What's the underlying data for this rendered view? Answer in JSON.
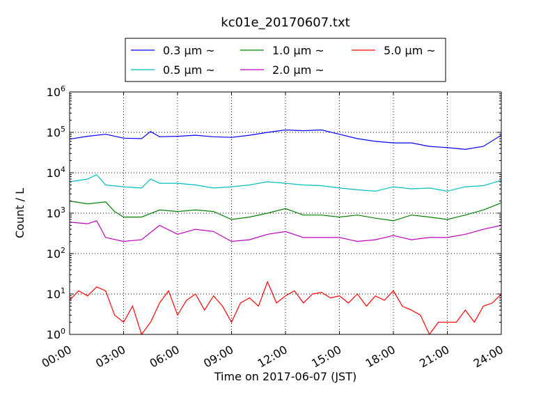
{
  "chart_data": {
    "type": "line",
    "title": "kc01e_20170607.txt",
    "xlabel": "Time on 2017-06-07 (JST)",
    "ylabel": "Count / L",
    "yscale": "log",
    "ylim": [
      1,
      1000000
    ],
    "xlim": [
      0,
      24
    ],
    "grid": true,
    "legend_position": "top-center",
    "x_tick_labels": [
      "00:00",
      "03:00",
      "06:00",
      "09:00",
      "12:00",
      "15:00",
      "18:00",
      "21:00",
      "24:00"
    ],
    "y_tick_exponents": [
      "0",
      "1",
      "2",
      "3",
      "4",
      "5",
      "6"
    ],
    "y_tick_base": "10",
    "series": [
      {
        "name": "0.3 μm ~",
        "color": "#0000ff",
        "x": [
          0,
          1,
          2,
          3,
          4,
          4.5,
          5,
          6,
          7,
          8,
          9,
          10,
          11,
          12,
          13,
          14,
          15,
          16,
          17,
          18,
          19,
          20,
          21,
          22,
          23,
          24
        ],
        "values": [
          68000,
          80000,
          90000,
          72000,
          70000,
          105000,
          78000,
          80000,
          85000,
          78000,
          75000,
          85000,
          100000,
          115000,
          110000,
          115000,
          90000,
          70000,
          60000,
          55000,
          55000,
          45000,
          42000,
          38000,
          45000,
          85000
        ]
      },
      {
        "name": "0.5 μm ~",
        "color": "#00bfbf",
        "x": [
          0,
          1,
          1.5,
          2,
          3,
          4,
          4.5,
          5,
          6,
          7,
          8,
          9,
          10,
          11,
          12,
          13,
          14,
          15,
          16,
          17,
          18,
          19,
          20,
          21,
          22,
          23,
          24
        ],
        "values": [
          6000,
          7000,
          9000,
          5000,
          4500,
          4200,
          7000,
          5500,
          5500,
          5000,
          4200,
          4500,
          5000,
          6000,
          5500,
          5000,
          4800,
          4200,
          3800,
          3500,
          4500,
          4000,
          4200,
          3500,
          4500,
          4800,
          6500
        ]
      },
      {
        "name": "1.0 μm ~",
        "color": "#008000",
        "x": [
          0,
          1,
          2,
          2.5,
          3,
          4,
          5,
          6,
          7,
          8,
          9,
          10,
          11,
          12,
          13,
          14,
          15,
          16,
          17,
          18,
          19,
          20,
          21,
          22,
          23,
          24
        ],
        "values": [
          2000,
          1700,
          1900,
          1100,
          800,
          800,
          1200,
          1100,
          1200,
          1100,
          700,
          800,
          1000,
          1300,
          900,
          900,
          800,
          900,
          750,
          650,
          900,
          800,
          700,
          900,
          1200,
          1800
        ]
      },
      {
        "name": "2.0 μm ~",
        "color": "#bf00bf",
        "x": [
          0,
          1,
          1.5,
          2,
          3,
          4,
          5,
          6,
          7,
          8,
          9,
          10,
          11,
          12,
          13,
          14,
          15,
          16,
          17,
          18,
          19,
          20,
          21,
          22,
          23,
          24
        ],
        "values": [
          600,
          550,
          650,
          250,
          200,
          220,
          500,
          300,
          400,
          350,
          200,
          220,
          300,
          350,
          250,
          250,
          250,
          200,
          220,
          280,
          220,
          250,
          250,
          300,
          400,
          500
        ]
      },
      {
        "name": "5.0 μm ~",
        "color": "#ff0000",
        "x": [
          0,
          0.5,
          1,
          1.5,
          2,
          2.5,
          3,
          3.5,
          4,
          4.5,
          5,
          5.5,
          6,
          6.5,
          7,
          7.5,
          8,
          8.5,
          9,
          9.5,
          10,
          10.5,
          11,
          11.5,
          12,
          12.5,
          13,
          13.5,
          14,
          14.5,
          15,
          15.5,
          16,
          16.5,
          17,
          17.5,
          18,
          18.5,
          19,
          19.5,
          20,
          20.5,
          21,
          21.5,
          22,
          22.5,
          23,
          23.5,
          24
        ],
        "values": [
          7,
          12,
          9,
          15,
          12,
          3,
          2,
          5,
          1,
          2,
          6,
          12,
          3,
          7,
          10,
          4,
          9,
          5,
          2,
          6,
          8,
          5,
          20,
          6,
          9,
          12,
          6,
          10,
          11,
          8,
          9,
          6,
          10,
          5,
          9,
          7,
          12,
          5,
          4,
          3,
          1,
          2,
          2,
          2,
          4,
          2,
          5,
          6,
          10
        ]
      }
    ]
  }
}
